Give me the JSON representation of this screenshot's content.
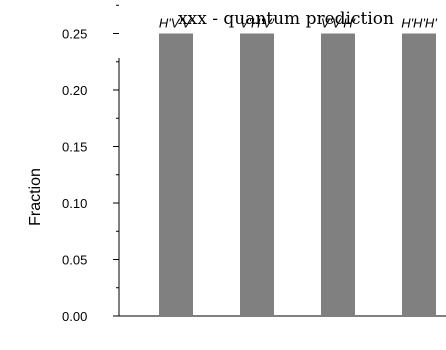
{
  "chart_data": {
    "type": "bar",
    "title": "xxx - quantum prediction",
    "xlabel": "",
    "ylabel": "Fraction",
    "categories": [
      "H'V'V'",
      "V'H'V'",
      "V'V'H'",
      "H'H'H'"
    ],
    "values": [
      0.25,
      0.25,
      0.25,
      0.25
    ],
    "ylim": [
      0,
      0.275
    ],
    "yticks": [
      "0.00",
      "0.05",
      "0.10",
      "0.15",
      "0.20",
      "0.25"
    ],
    "grid": false,
    "legend": "none",
    "bar_color": "#808080"
  }
}
